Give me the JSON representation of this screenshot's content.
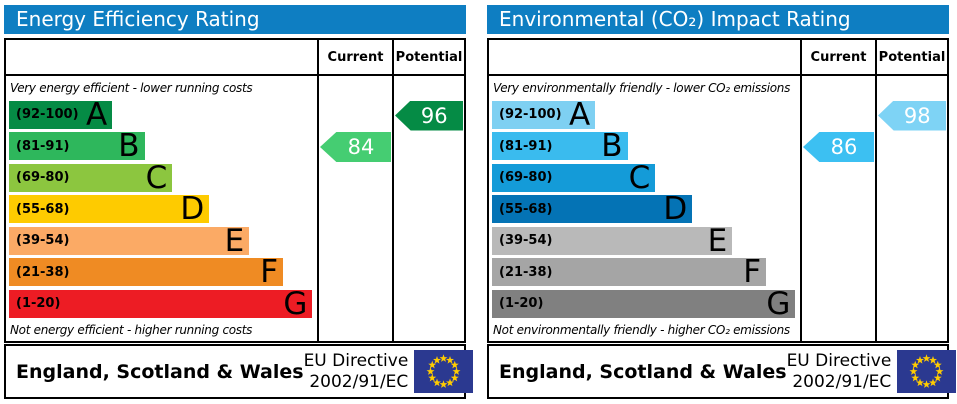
{
  "colors": {
    "header_bg": "#0e7ec2",
    "flag_bg": "#2b3990",
    "star": "#ffcc00",
    "border": "#000000"
  },
  "panels": [
    {
      "title": "Energy Efficiency Rating",
      "columns": {
        "current": "Current",
        "potential": "Potential"
      },
      "top_caption": "Very energy efficient - lower running costs",
      "bottom_caption": "Not energy efficient - higher running costs",
      "bands": [
        {
          "range": "(92-100)",
          "letter": "A",
          "color": "#058b45",
          "width_pct": 33.5
        },
        {
          "range": "(81-91)",
          "letter": "B",
          "color": "#2eb75c",
          "width_pct": 44
        },
        {
          "range": "(69-80)",
          "letter": "C",
          "color": "#8cc63f",
          "width_pct": 53
        },
        {
          "range": "(55-68)",
          "letter": "D",
          "color": "#fecb00",
          "width_pct": 65
        },
        {
          "range": "(39-54)",
          "letter": "E",
          "color": "#fbaa65",
          "width_pct": 78
        },
        {
          "range": "(21-38)",
          "letter": "F",
          "color": "#ef8b23",
          "width_pct": 89
        },
        {
          "range": "(1-20)",
          "letter": "G",
          "color": "#ed1c24",
          "width_pct": 98.5
        }
      ],
      "current": {
        "value": "84",
        "band": "B",
        "band_index": 1,
        "color": "#45cd72"
      },
      "potential": {
        "value": "96",
        "band": "A",
        "band_index": 0,
        "color": "#058b45"
      },
      "footer": {
        "region": "England, Scotland & Wales",
        "directive_line1": "EU Directive",
        "directive_line2": "2002/91/EC"
      }
    },
    {
      "title": "Environmental (CO₂) Impact Rating",
      "columns": {
        "current": "Current",
        "potential": "Potential"
      },
      "top_caption": "Very environmentally friendly - lower CO₂ emissions",
      "bottom_caption": "Not environmentally friendly - higher CO₂ emissions",
      "bands": [
        {
          "range": "(92-100)",
          "letter": "A",
          "color": "#7ed0f2",
          "width_pct": 33.5
        },
        {
          "range": "(81-91)",
          "letter": "B",
          "color": "#3abbee",
          "width_pct": 44
        },
        {
          "range": "(69-80)",
          "letter": "C",
          "color": "#149bd8",
          "width_pct": 53
        },
        {
          "range": "(55-68)",
          "letter": "D",
          "color": "#0473b5",
          "width_pct": 65
        },
        {
          "range": "(39-54)",
          "letter": "E",
          "color": "#b9b9b9",
          "width_pct": 78
        },
        {
          "range": "(21-38)",
          "letter": "F",
          "color": "#a5a5a5",
          "width_pct": 89
        },
        {
          "range": "(1-20)",
          "letter": "G",
          "color": "#808080",
          "width_pct": 98.5
        }
      ],
      "current": {
        "value": "86",
        "band": "B",
        "band_index": 1,
        "color": "#3cc0f2"
      },
      "potential": {
        "value": "98",
        "band": "A",
        "band_index": 0,
        "color": "#7ed3f5"
      },
      "footer": {
        "region": "England, Scotland & Wales",
        "directive_line1": "EU Directive",
        "directive_line2": "2002/91/EC"
      }
    }
  ],
  "chart_data": [
    {
      "type": "bar",
      "title": "Energy Efficiency Rating",
      "categories": [
        "A",
        "B",
        "C",
        "D",
        "E",
        "F",
        "G"
      ],
      "band_ranges": [
        "92-100",
        "81-91",
        "69-80",
        "55-68",
        "39-54",
        "21-38",
        "1-20"
      ],
      "values": {
        "current": 84,
        "potential": 96
      },
      "current_band": "B",
      "potential_band": "A",
      "annotations": [
        "Very energy efficient - lower running costs",
        "Not energy efficient - higher running costs"
      ],
      "footer": "England, Scotland & Wales — EU Directive 2002/91/EC"
    },
    {
      "type": "bar",
      "title": "Environmental (CO₂) Impact Rating",
      "categories": [
        "A",
        "B",
        "C",
        "D",
        "E",
        "F",
        "G"
      ],
      "band_ranges": [
        "92-100",
        "81-91",
        "69-80",
        "55-68",
        "39-54",
        "21-38",
        "1-20"
      ],
      "values": {
        "current": 86,
        "potential": 98
      },
      "current_band": "B",
      "potential_band": "A",
      "annotations": [
        "Very environmentally friendly - lower CO₂ emissions",
        "Not environmentally friendly - higher CO₂ emissions"
      ],
      "footer": "England, Scotland & Wales — EU Directive 2002/91/EC"
    }
  ]
}
